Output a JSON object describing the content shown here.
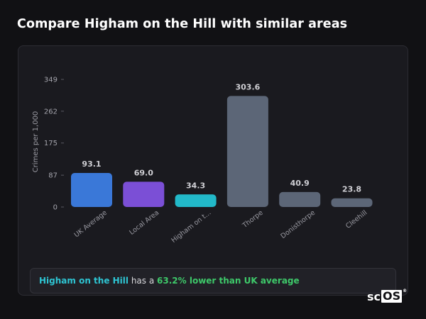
{
  "header": {
    "title": "Compare Higham on the Hill with similar areas"
  },
  "chart_data": {
    "type": "bar",
    "ylabel": "Crimes per 1,000",
    "xlabel": "",
    "ylim": [
      0,
      349
    ],
    "yticks": [
      0,
      87,
      175,
      262,
      349
    ],
    "ytick_labels": [
      "0",
      "87",
      "175",
      "262",
      "349"
    ],
    "categories": [
      "UK Average",
      "Local Area",
      "Higham on t...",
      "Thorpe",
      "Donisthorpe",
      "Cleehill"
    ],
    "values": [
      93.1,
      69.0,
      34.3,
      303.6,
      40.9,
      23.8
    ],
    "value_labels": [
      "93.1",
      "69.0",
      "34.3",
      "303.6",
      "40.9",
      "23.8"
    ],
    "colors": [
      "#3a78d8",
      "#7b4fd6",
      "#22b9c9",
      "#5c6677",
      "#5c6677",
      "#5c6677"
    ],
    "grid": false,
    "legend": "none"
  },
  "callout": {
    "area_name": "Higham on the Hill",
    "middle_text": " has a ",
    "comparison": "63.2% lower than UK average"
  },
  "logo": {
    "prefix": "sc",
    "box": "OS",
    "mark": "®"
  }
}
